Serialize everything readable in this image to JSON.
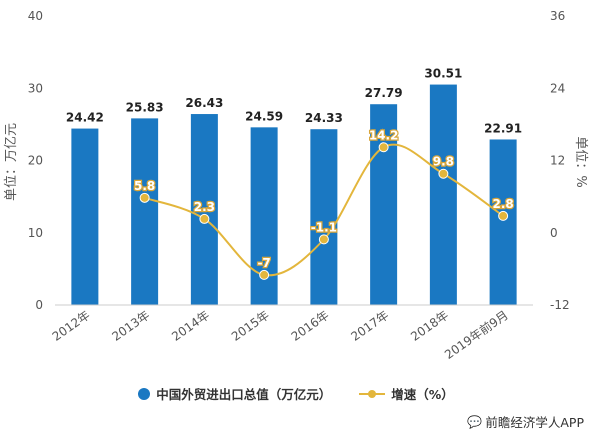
{
  "chart_data": {
    "type": "bar",
    "categories": [
      "2012年",
      "2013年",
      "2014年",
      "2015年",
      "2016年",
      "2017年",
      "2018年",
      "2019年前9月"
    ],
    "series": [
      {
        "name": "中国外贸进出口总值（万亿元）",
        "type": "bar",
        "axis": "left",
        "values": [
          24.42,
          25.83,
          26.43,
          24.59,
          24.33,
          27.79,
          30.51,
          22.91
        ],
        "labels": [
          "24.42",
          "25.83",
          "26.43",
          "24.59",
          "24.33",
          "27.79",
          "30.51",
          "22.91"
        ]
      },
      {
        "name": "增速（%）",
        "type": "line",
        "axis": "right",
        "values": [
          null,
          5.8,
          2.3,
          -7,
          -1.1,
          14.2,
          9.8,
          2.8
        ],
        "labels": [
          "",
          "5.8",
          "2.3",
          "-7",
          "-1.1",
          "14.2",
          "9.8",
          "2.8"
        ]
      }
    ],
    "left_axis": {
      "label": "单位：万亿元",
      "min": 0,
      "max": 40,
      "ticks": [
        0,
        10,
        20,
        30,
        40
      ]
    },
    "right_axis": {
      "label": "单位：%",
      "min": -12,
      "max": 36,
      "ticks": [
        -12,
        0,
        12,
        24,
        36
      ]
    },
    "grid": false,
    "legend_position": "bottom",
    "colors": {
      "bar": "#1a78c2",
      "line": "#e3b63c"
    }
  },
  "source": {
    "icon": "wechat-icon",
    "text": "前瞻经济学人APP"
  }
}
